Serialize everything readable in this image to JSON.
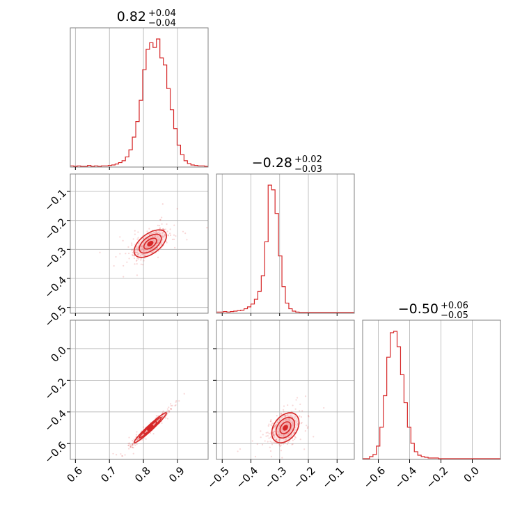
{
  "colors": {
    "accent": "#d62728",
    "fill": "#f4a6a8",
    "grid": "#b0b0b0",
    "frame": "#808080"
  },
  "chart_data": {
    "type": "scatter",
    "layout": "corner plot (3 parameters)",
    "grid": true,
    "parameters": [
      {
        "median_text": "0.82",
        "plus_text": "+0.04",
        "minus_text": "−0.04",
        "range": [
          0.585,
          0.99
        ],
        "ticks": [
          0.6,
          0.7,
          0.8,
          0.9
        ],
        "tick_labels": [
          "0.6",
          "0.7",
          "0.8",
          "0.9"
        ],
        "mean": 0.82,
        "sd": 0.025
      },
      {
        "median_text": "−0.28",
        "plus_text": "+0.02",
        "minus_text": "−0.03",
        "range": [
          -0.52,
          -0.04
        ],
        "ticks": [
          -0.5,
          -0.4,
          -0.3,
          -0.2,
          -0.1
        ],
        "tick_labels": [
          "−0.5",
          "−0.4",
          "−0.3",
          "−0.2",
          "−0.1"
        ],
        "mean": -0.28,
        "sd": 0.025
      },
      {
        "median_text": "−0.50",
        "plus_text": "+0.06",
        "minus_text": "−0.05",
        "range": [
          -0.7,
          0.18
        ],
        "ticks": [
          -0.6,
          -0.4,
          -0.2,
          0.0
        ],
        "tick_labels": [
          "−0.6",
          "−0.4",
          "−0.2",
          "0.0"
        ],
        "mean": -0.5,
        "sd": 0.05
      }
    ],
    "histograms": [
      {
        "param": 0,
        "bins": [
          0.585,
          0.99
        ],
        "counts": [
          1,
          0,
          1,
          0,
          0,
          2,
          0,
          1,
          0,
          1,
          1,
          2,
          3,
          5,
          8,
          12,
          20,
          35,
          62,
          95,
          140,
          205,
          248,
          262,
          252,
          270,
          230,
          215,
          165,
          120,
          80,
          45,
          25,
          12,
          6,
          3,
          2,
          1,
          1,
          0
        ]
      },
      {
        "param": 1,
        "bins": [
          -0.52,
          -0.04
        ],
        "counts": [
          1,
          1,
          2,
          1,
          2,
          3,
          4,
          5,
          8,
          12,
          18,
          28,
          45,
          78,
          150,
          270,
          260,
          210,
          120,
          55,
          20,
          8,
          3,
          1,
          0,
          0,
          0,
          0,
          0,
          0,
          0,
          0,
          0,
          0,
          0,
          0,
          0,
          0,
          0,
          0
        ]
      },
      {
        "param": 2,
        "bins": [
          -0.7,
          0.18
        ],
        "counts": [
          0,
          0,
          3,
          6,
          18,
          45,
          90,
          145,
          180,
          182,
          160,
          120,
          80,
          45,
          22,
          10,
          5,
          3,
          2,
          1,
          1,
          1,
          0,
          0,
          0,
          0,
          0,
          0,
          0,
          0,
          0,
          0,
          0,
          0,
          0,
          0,
          0,
          0,
          0,
          0
        ]
      }
    ],
    "pairs": [
      {
        "x_param": 0,
        "y_param": 1,
        "center": [
          0.82,
          -0.28
        ],
        "correlation": 0.55
      },
      {
        "x_param": 0,
        "y_param": 2,
        "center": [
          0.82,
          -0.5
        ],
        "correlation": 0.97
      },
      {
        "x_param": 1,
        "y_param": 2,
        "center": [
          -0.28,
          -0.5
        ],
        "correlation": 0.35
      }
    ]
  }
}
